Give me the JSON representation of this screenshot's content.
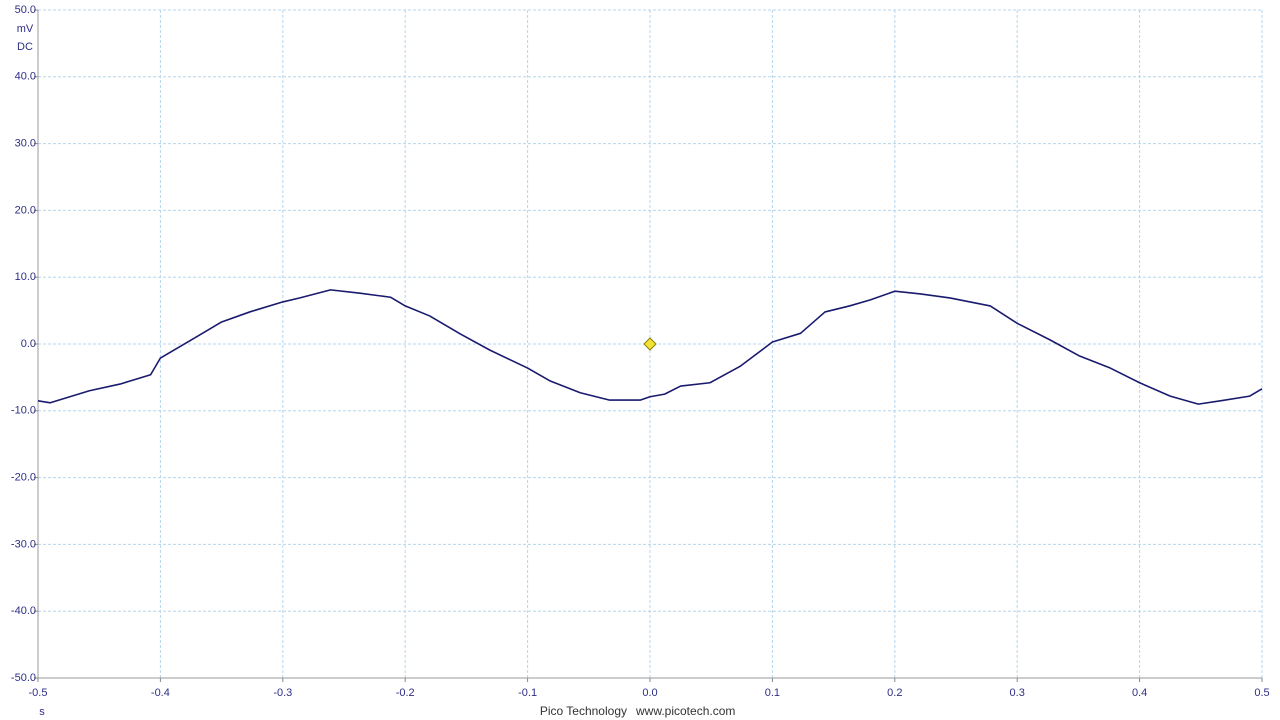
{
  "chart_data": {
    "type": "line",
    "y_unit": "mV",
    "coupling": "DC",
    "x_unit": "s",
    "footer_company": "Pico Technology",
    "footer_url": "www.picotech.com",
    "xlim": [
      -0.5,
      0.5
    ],
    "ylim": [
      -50,
      50
    ],
    "xticks": [
      -0.5,
      -0.4,
      -0.3,
      -0.2,
      -0.1,
      {
        "value": 0,
        "label": "0.0"
      },
      0.1,
      0.2,
      0.3,
      0.4,
      0.5
    ],
    "yticks": [
      {
        "value": 50,
        "label": "50.0"
      },
      {
        "value": 40,
        "label": "40.0"
      },
      {
        "value": 30,
        "label": "30.0"
      },
      {
        "value": 20,
        "label": "20.0"
      },
      {
        "value": 10,
        "label": "10.0"
      },
      {
        "value": 0,
        "label": "0.0"
      },
      {
        "value": -10,
        "label": "-10.0"
      },
      {
        "value": -20,
        "label": "-20.0"
      },
      {
        "value": -30,
        "label": "-30.0"
      },
      {
        "value": -40,
        "label": "-40.0"
      },
      {
        "value": -50,
        "label": "-50.0"
      }
    ],
    "grid": true,
    "x": [
      -0.5,
      -0.49,
      -0.458,
      -0.433,
      -0.408,
      -0.4,
      -0.372,
      -0.35,
      -0.327,
      -0.3,
      -0.286,
      -0.261,
      -0.237,
      -0.212,
      -0.2,
      -0.18,
      -0.155,
      -0.131,
      -0.1,
      -0.082,
      -0.057,
      -0.033,
      -0.008,
      0,
      0.012,
      0.025,
      0.049,
      0.074,
      0.1,
      0.123,
      0.143,
      0.163,
      0.18,
      0.2,
      0.221,
      0.245,
      0.278,
      0.3,
      0.327,
      0.351,
      0.376,
      0.4,
      0.425,
      0.448,
      0.466,
      0.49,
      0.5
    ],
    "series": [
      {
        "color": "#1a1a6e",
        "values": [
          -8.5,
          -8.8,
          -7.0,
          -6.0,
          -4.6,
          -2.1,
          0.9,
          3.3,
          4.8,
          6.3,
          6.9,
          8.1,
          7.6,
          7.0,
          5.7,
          4.2,
          1.5,
          -0.9,
          -3.6,
          -5.5,
          -7.3,
          -8.4,
          -8.4,
          -7.9,
          -7.5,
          -6.3,
          -5.8,
          -3.3,
          0.3,
          1.6,
          4.8,
          5.7,
          6.6,
          7.9,
          7.5,
          6.9,
          5.7,
          3.1,
          0.6,
          -1.8,
          -3.6,
          -5.8,
          -7.8,
          -9.0,
          -8.5,
          -7.8,
          -6.7
        ]
      }
    ],
    "trigger": {
      "x": 0,
      "y": 0,
      "color": "#f2e330"
    }
  }
}
